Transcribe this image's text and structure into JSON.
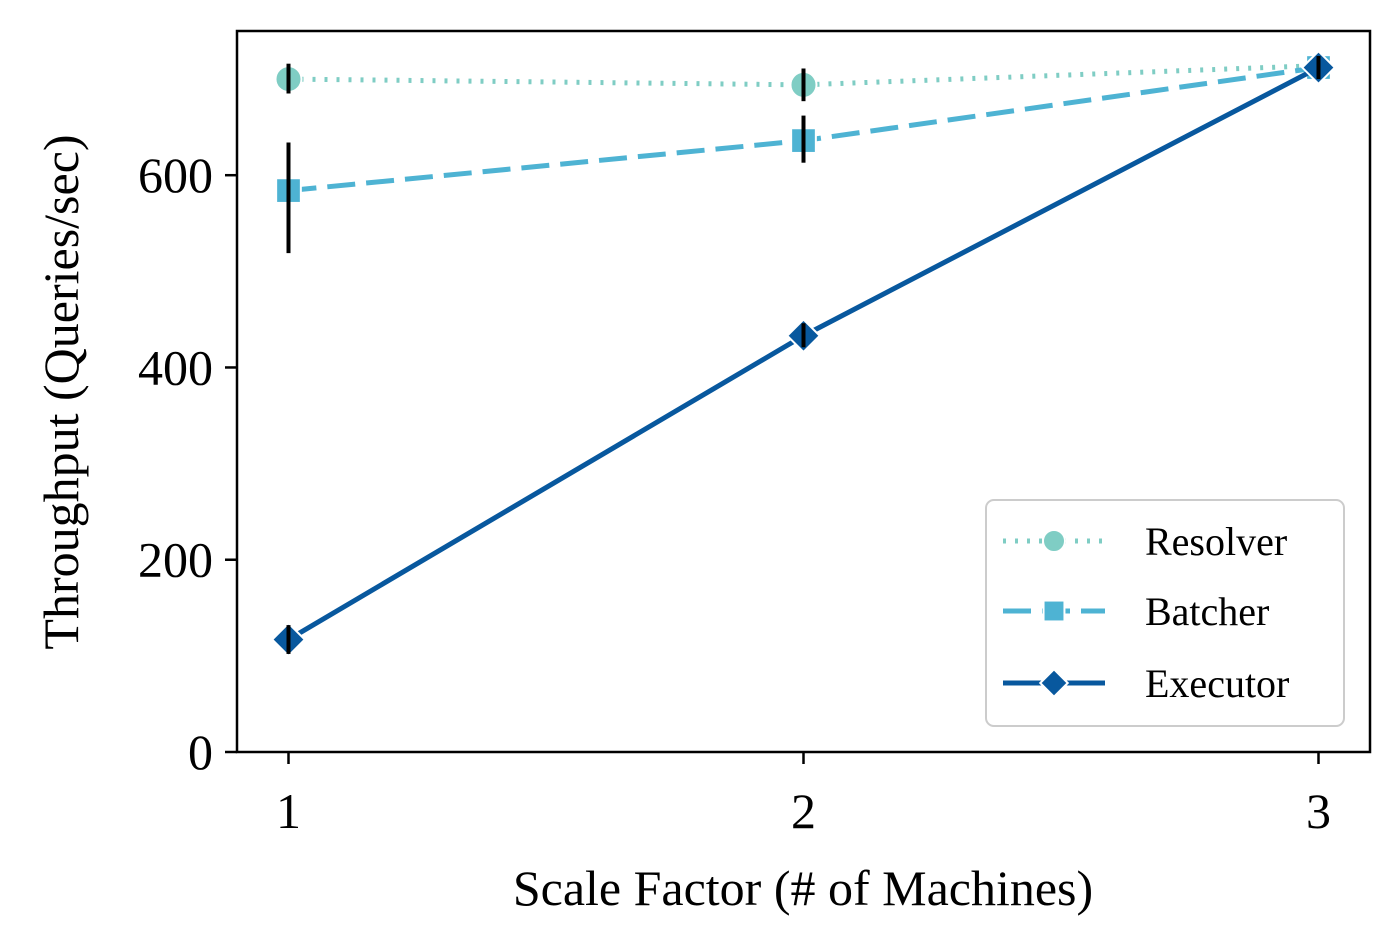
{
  "chart_data": {
    "type": "line",
    "title": "",
    "xlabel": "Scale Factor (# of Machines)",
    "ylabel": "Throughput (Queries/sec)",
    "x": [
      1,
      2,
      3
    ],
    "xticks": [
      "1",
      "2",
      "3"
    ],
    "yticks": [
      "0",
      "200",
      "400",
      "600"
    ],
    "xlim": [
      0.9,
      3.1
    ],
    "ylim": [
      0,
      750
    ],
    "grid": false,
    "legend": {
      "position": "lower-right"
    },
    "series": [
      {
        "name": "Resolver",
        "values": [
          700,
          694,
          714
        ],
        "error": [
          [
            685,
            716
          ],
          [
            677,
            711
          ],
          [
            700,
            728
          ]
        ],
        "color": "#7fcdc4",
        "marker": "circle",
        "line_style": "dotted"
      },
      {
        "name": "Batcher",
        "values": [
          584,
          636,
          712
        ],
        "error": [
          [
            519,
            634
          ],
          [
            613,
            662
          ],
          [
            700,
            724
          ]
        ],
        "color": "#4eb3d3",
        "marker": "square",
        "line_style": "dashed"
      },
      {
        "name": "Executor",
        "values": [
          117,
          433,
          712
        ],
        "error": [
          [
            102,
            132
          ],
          [
            421,
            446
          ],
          [
            700,
            724
          ]
        ],
        "color": "#08589e",
        "marker": "diamond",
        "line_style": "solid"
      }
    ]
  }
}
